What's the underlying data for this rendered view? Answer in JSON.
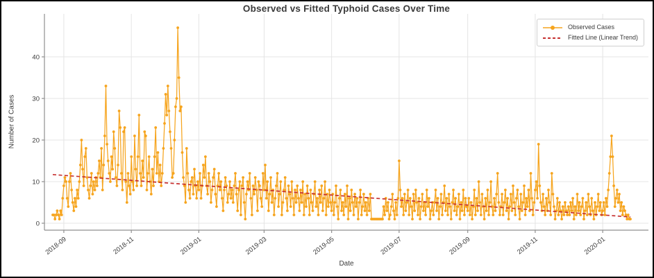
{
  "figure": {
    "background": "#ffffff",
    "frame_border_color": "#000000"
  },
  "chart_data": {
    "type": "line",
    "title": "Observed vs Fitted Typhoid Cases Over Time",
    "xlabel": "Date",
    "ylabel": "Number of Cases",
    "legend_position": "upper right",
    "grid": true,
    "grid_color": "#e4e4e4",
    "spine_color": "#8f8f8f",
    "tick_text_color": "#3a3a3a",
    "y_ticks": [
      0,
      10,
      20,
      30,
      40
    ],
    "ylim": [
      -2.4,
      49.4
    ],
    "x_ticks": [
      "2018-09",
      "2018-11",
      "2019-01",
      "2019-03",
      "2019-05",
      "2019-07",
      "2019-09",
      "2019-11",
      "2020-01"
    ],
    "start_date": "2018-08-22",
    "series": [
      {
        "name": "Observed Cases",
        "color": "#F6A41D",
        "style": "line-with-markers",
        "months": [
          {
            "month": "2018-08",
            "values": [
              2,
              2,
              1,
              2,
              3,
              2,
              1,
              3,
              2,
              6
            ]
          },
          {
            "month": "2018-09",
            "values": [
              9,
              11,
              10,
              6,
              4,
              10,
              12,
              8,
              5,
              3,
              6,
              4,
              8,
              6,
              10,
              14,
              20,
              13,
              9,
              16,
              18,
              11,
              8,
              6,
              9,
              12,
              7,
              10,
              8,
              11
            ]
          },
          {
            "month": "2018-10",
            "values": [
              9,
              12,
              15,
              11,
              18,
              8,
              14,
              21,
              33,
              19,
              15,
              12,
              10,
              16,
              13,
              22,
              18,
              11,
              9,
              14,
              27,
              23,
              12,
              8,
              22,
              23,
              10,
              5,
              12,
              9,
              7
            ]
          },
          {
            "month": "2018-11",
            "values": [
              16,
              10,
              8,
              21,
              13,
              9,
              16,
              26,
              12,
              9,
              15,
              11,
              22,
              21,
              8,
              12,
              16,
              10,
              7,
              13,
              9,
              16,
              23,
              12,
              17,
              10,
              14,
              9,
              12,
              18
            ]
          },
          {
            "month": "2018-12",
            "values": [
              24,
              31,
              26,
              33,
              27,
              22,
              18,
              11,
              12,
              20,
              28,
              30,
              47,
              35,
              27,
              28,
              17,
              11,
              9,
              5,
              18,
              12,
              8,
              6,
              10,
              11,
              7,
              13,
              9,
              6,
              10
            ]
          },
          {
            "month": "2019-01",
            "values": [
              8,
              12,
              6,
              9,
              14,
              11,
              16,
              9,
              7,
              12,
              10,
              5,
              8,
              11,
              13,
              7,
              4,
              9,
              12,
              8,
              10,
              6,
              3,
              8,
              11,
              9,
              5,
              7,
              10,
              6,
              8
            ]
          },
          {
            "month": "2019-02",
            "values": [
              5,
              9,
              12,
              7,
              3,
              8,
              10,
              2,
              9,
              11,
              5,
              1,
              7,
              10,
              8,
              12,
              6,
              2,
              9,
              7,
              11,
              8,
              3,
              10,
              9,
              6,
              4,
              12
            ]
          },
          {
            "month": "2019-03",
            "values": [
              8,
              14,
              6,
              10,
              3,
              7,
              11,
              5,
              8,
              2,
              6,
              9,
              12,
              4,
              7,
              10,
              2,
              5,
              8,
              11,
              6,
              3,
              9,
              7,
              4,
              10,
              6,
              2,
              8,
              5,
              9
            ]
          },
          {
            "month": "2019-04",
            "values": [
              6,
              3,
              8,
              5,
              10,
              2,
              7,
              4,
              9,
              6,
              2,
              8,
              5,
              3,
              7,
              10,
              4,
              6,
              2,
              8,
              5,
              9,
              3,
              6,
              10,
              2,
              7,
              4,
              8,
              5
            ]
          },
          {
            "month": "2019-05",
            "values": [
              3,
              7,
              2,
              5,
              9,
              4,
              1,
              6,
              8,
              3,
              5,
              2,
              7,
              4,
              9,
              1,
              6,
              3,
              8,
              5,
              2,
              7,
              4,
              6,
              1,
              5,
              8,
              2,
              4,
              7,
              3
            ]
          },
          {
            "month": "2019-06",
            "values": [
              5,
              2,
              6,
              3,
              7,
              1,
              1,
              1,
              1,
              1,
              1,
              1,
              1,
              1,
              1,
              1,
              4,
              2,
              6,
              3,
              5,
              1,
              2,
              4,
              7,
              3,
              1,
              5,
              2,
              6
            ]
          },
          {
            "month": "2019-07",
            "values": [
              15,
              8,
              4,
              6,
              2,
              7,
              3,
              5,
              8,
              2,
              6,
              4,
              1,
              7,
              3,
              8,
              5,
              2,
              6,
              1,
              4,
              7,
              3,
              5,
              2,
              8,
              4,
              6,
              1,
              3,
              5
            ]
          },
          {
            "month": "2019-08",
            "values": [
              2,
              5,
              8,
              3,
              6,
              1,
              4,
              7,
              2,
              5,
              9,
              3,
              6,
              2,
              7,
              4,
              1,
              5,
              8,
              3,
              6,
              2,
              4,
              7,
              1,
              5,
              3,
              8,
              2,
              6,
              4
            ]
          },
          {
            "month": "2019-09",
            "values": [
              3,
              6,
              2,
              5,
              1,
              4,
              8,
              2,
              6,
              3,
              10,
              5,
              2,
              7,
              4,
              1,
              6,
              3,
              8,
              2,
              5,
              10,
              4,
              2,
              6,
              3,
              7,
              12,
              5,
              2
            ]
          },
          {
            "month": "2019-10",
            "values": [
              4,
              7,
              2,
              5,
              8,
              3,
              6,
              1,
              4,
              7,
              3,
              9,
              5,
              2,
              6,
              8,
              4,
              1,
              7,
              3,
              5,
              9,
              2,
              6,
              4,
              8,
              3,
              12,
              6,
              2,
              5
            ]
          },
          {
            "month": "2019-11",
            "values": [
              8,
              10,
              6,
              19,
              9,
              5,
              3,
              7,
              4,
              2,
              6,
              3,
              8,
              5,
              2,
              12,
              7,
              4,
              1,
              3,
              6,
              2,
              5,
              3,
              1,
              4,
              2,
              5,
              3,
              2
            ]
          },
          {
            "month": "2019-12",
            "values": [
              4,
              2,
              5,
              3,
              6,
              1,
              4,
              2,
              7,
              3,
              5,
              2,
              4,
              6,
              1,
              3,
              5,
              2,
              7,
              4,
              2,
              6,
              3,
              1,
              5,
              2,
              4,
              7,
              3,
              5,
              2
            ]
          },
          {
            "month": "2020-01",
            "values": [
              3,
              5,
              2,
              6,
              4,
              8,
              12,
              16,
              21,
              16,
              9,
              4,
              6,
              8,
              5,
              7,
              3,
              5,
              2,
              4,
              3,
              2,
              1,
              2,
              1,
              1
            ]
          }
        ]
      },
      {
        "name": "Fitted Line (Linear Trend)",
        "color": "#C62F2F",
        "style": "dashed",
        "trend": {
          "start_value": 11.7,
          "end_value": 1.5
        }
      }
    ]
  }
}
